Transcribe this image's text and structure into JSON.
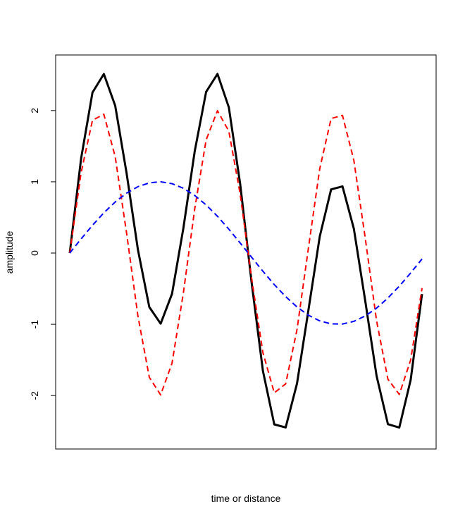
{
  "chart_data": {
    "type": "line",
    "xlabel": "time or distance",
    "ylabel": "amplitude",
    "x": [
      0,
      0.2,
      0.4,
      0.6,
      0.8,
      1.0,
      1.2,
      1.4,
      1.6,
      1.8,
      2.0,
      2.2,
      2.4,
      2.6,
      2.8,
      3.0,
      3.2,
      3.4,
      3.6,
      3.8,
      4.0,
      4.2,
      4.4,
      4.6,
      4.8,
      5.0,
      5.2,
      5.4,
      5.6,
      5.8,
      6.0,
      6.2
    ],
    "series": [
      {
        "color": "#000000",
        "dash": "solid",
        "width": 3,
        "values": [
          0,
          1.328,
          2.253,
          2.513,
          2.068,
          1.123,
          0.047,
          -0.758,
          -0.991,
          -0.572,
          0.35,
          1.431,
          2.262,
          2.514,
          2.045,
          0.966,
          -0.408,
          -1.655,
          -2.405,
          -2.448,
          -1.83,
          -0.805,
          0.232,
          0.894,
          0.936,
          0.342,
          -0.668,
          -1.723,
          -2.402,
          -2.449,
          -1.781,
          -0.575
        ]
      },
      {
        "color": "#ff0000",
        "dash": "dashed",
        "width": 2,
        "values": [
          0,
          1.129,
          1.864,
          1.948,
          1.351,
          0.282,
          -0.885,
          -1.743,
          -1.991,
          -1.546,
          -0.559,
          0.623,
          1.587,
          1.998,
          1.71,
          0.825,
          -0.35,
          -1.399,
          -1.962,
          -1.836,
          -1.073,
          0.067,
          1.184,
          1.888,
          1.932,
          1.301,
          0.215,
          -0.95,
          -1.771,
          -1.984,
          -1.502,
          -0.492
        ]
      },
      {
        "color": "#0000ff",
        "dash": "dashed",
        "width": 2,
        "values": [
          0,
          0.199,
          0.389,
          0.565,
          0.717,
          0.841,
          0.932,
          0.985,
          1.0,
          0.974,
          0.909,
          0.808,
          0.675,
          0.516,
          0.335,
          0.141,
          -0.058,
          -0.256,
          -0.443,
          -0.612,
          -0.757,
          -0.872,
          -0.952,
          -0.994,
          -0.996,
          -0.959,
          -0.883,
          -0.773,
          -0.631,
          -0.465,
          -0.279,
          -0.083
        ]
      }
    ],
    "xlim": [
      -0.248,
      6.448
    ],
    "ylim": [
      -2.75,
      2.78
    ],
    "yticks": [
      -2,
      -1,
      0,
      1,
      2
    ]
  }
}
